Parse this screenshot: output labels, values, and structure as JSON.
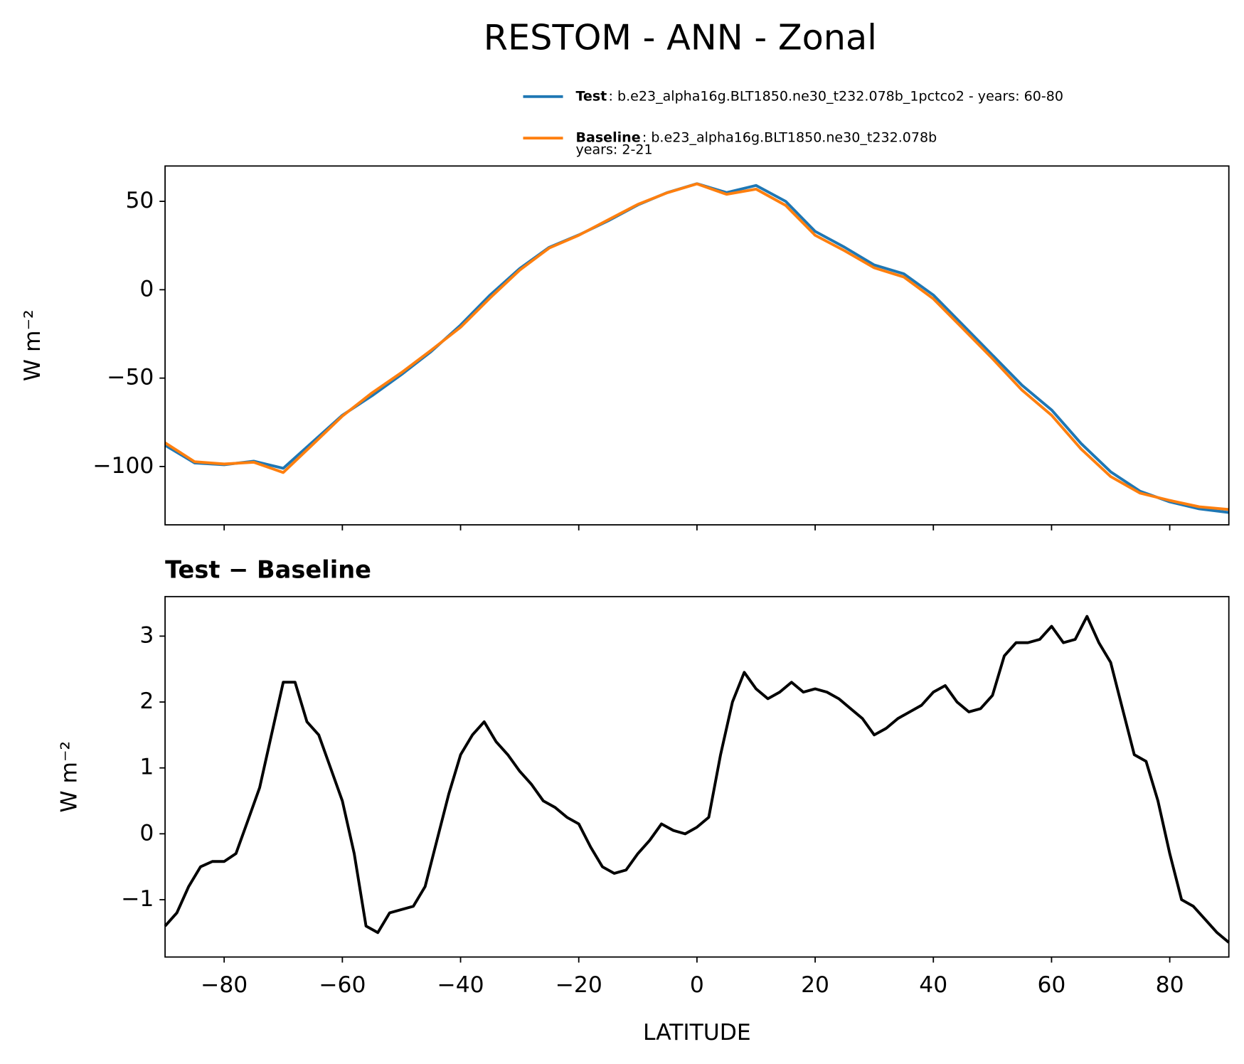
{
  "chart_data": [
    {
      "type": "line",
      "suptitle": "RESTOM - ANN - Zonal",
      "ylabel": "W m⁻²",
      "x": [
        -90,
        -85,
        -80,
        -75,
        -70,
        -65,
        -60,
        -55,
        -50,
        -45,
        -40,
        -35,
        -30,
        -25,
        -20,
        -15,
        -10,
        -5,
        0,
        5,
        10,
        15,
        20,
        25,
        30,
        35,
        40,
        45,
        50,
        55,
        60,
        65,
        70,
        75,
        80,
        85,
        90
      ],
      "series": [
        {
          "name": "Test",
          "description": ": b.e23_alpha16g.BLT1850.ne30_t232.078b_1pctco2 - years: 60-80",
          "color": "#1f77b4",
          "values": [
            -88,
            -98,
            -99,
            -97,
            -101,
            -86,
            -71,
            -60,
            -48,
            -35,
            -20,
            -3,
            12,
            24,
            31,
            39,
            48,
            55,
            60,
            55,
            59,
            50,
            33,
            24,
            14,
            9,
            -3,
            -20,
            -37,
            -54,
            -68,
            -87,
            -103,
            -114,
            -120,
            -124,
            -126
          ]
        },
        {
          "name": "Baseline",
          "description_lines": [
            ": b.e23_alpha16g.BLT1850.ne30_t232.078b",
            "years: 2-21"
          ],
          "color": "#ff7f0e",
          "values": [
            -86.6,
            -97.3,
            -98.6,
            -97.6,
            -103.4,
            -87.5,
            -71.5,
            -58.4,
            -46.9,
            -34.3,
            -21.2,
            -4.6,
            11.1,
            23.6,
            30.8,
            39.6,
            48.3,
            54.9,
            59.9,
            54,
            56.9,
            47.7,
            30.8,
            22,
            12.4,
            7.2,
            -5.1,
            -22,
            -39,
            -56.8,
            -71,
            -90.1,
            -105.7,
            -115.1,
            -119.2,
            -122.8,
            -124.3
          ]
        }
      ],
      "xlim": [
        -90,
        90
      ],
      "xticks": [
        -80,
        -60,
        -40,
        -20,
        0,
        20,
        40,
        60,
        80
      ],
      "ylim": [
        -133,
        70
      ],
      "yticks": [
        {
          "value": -100,
          "label": "−100"
        },
        {
          "value": -50,
          "label": "−50"
        },
        0,
        50
      ]
    },
    {
      "type": "line",
      "title": "Test − Baseline",
      "ylabel": "W m⁻²",
      "xlabel": "LATITUDE",
      "x": [
        -90,
        -88,
        -86,
        -84,
        -82,
        -80,
        -78,
        -76,
        -74,
        -72,
        -70,
        -68,
        -66,
        -64,
        -62,
        -60,
        -58,
        -56,
        -54,
        -52,
        -50,
        -48,
        -46,
        -44,
        -42,
        -40,
        -38,
        -36,
        -34,
        -32,
        -30,
        -28,
        -26,
        -24,
        -22,
        -20,
        -18,
        -16,
        -14,
        -12,
        -10,
        -8,
        -6,
        -4,
        -2,
        0,
        2,
        4,
        6,
        8,
        10,
        12,
        14,
        16,
        18,
        20,
        22,
        24,
        26,
        28,
        30,
        32,
        34,
        36,
        38,
        40,
        42,
        44,
        46,
        48,
        50,
        52,
        54,
        56,
        58,
        60,
        62,
        64,
        66,
        68,
        70,
        72,
        74,
        76,
        78,
        80,
        82,
        84,
        86,
        88,
        90
      ],
      "series": [
        {
          "color": "#000000",
          "values": [
            -1.4,
            -1.2,
            -0.8,
            -0.5,
            -0.42,
            -0.42,
            -0.3,
            0.2,
            0.7,
            1.5,
            2.3,
            2.3,
            1.7,
            1.5,
            1.0,
            0.5,
            -0.3,
            -1.4,
            -1.5,
            -1.2,
            -1.15,
            -1.1,
            -0.8,
            -0.1,
            0.6,
            1.2,
            1.5,
            1.7,
            1.4,
            1.2,
            0.95,
            0.75,
            0.5,
            0.4,
            0.25,
            0.15,
            -0.2,
            -0.5,
            -0.6,
            -0.55,
            -0.3,
            -0.1,
            0.15,
            0.05,
            0.0,
            0.1,
            0.25,
            1.2,
            2.0,
            2.45,
            2.2,
            2.05,
            2.15,
            2.3,
            2.15,
            2.2,
            2.15,
            2.05,
            1.9,
            1.75,
            1.5,
            1.6,
            1.75,
            1.85,
            1.95,
            2.15,
            2.25,
            2.0,
            1.85,
            1.9,
            2.1,
            2.7,
            2.9,
            2.9,
            2.95,
            3.15,
            2.9,
            2.95,
            3.3,
            2.9,
            2.6,
            1.9,
            1.2,
            1.1,
            0.5,
            -0.3,
            -1.0,
            -1.1,
            -1.3,
            -1.5,
            -1.65
          ]
        }
      ],
      "xlim": [
        -90,
        90
      ],
      "xticks": [
        {
          "value": -80,
          "label": "−80"
        },
        {
          "value": -60,
          "label": "−60"
        },
        {
          "value": -40,
          "label": "−40"
        },
        {
          "value": -20,
          "label": "−20"
        },
        0,
        20,
        40,
        60,
        80
      ],
      "ylim": [
        -1.87,
        3.6
      ],
      "yticks": [
        {
          "value": -1,
          "label": "−1"
        },
        0,
        1,
        2,
        3
      ]
    }
  ]
}
